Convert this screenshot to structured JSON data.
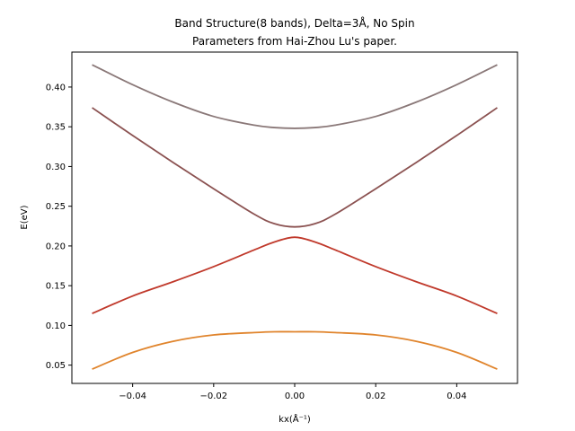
{
  "chart_data": {
    "type": "line",
    "title_line1": "Band Structure(8 bands), Delta=3Å, No Spin",
    "title_line2": "Parameters from Hai-Zhou Lu's paper.",
    "xlabel": "kx(Å⁻¹)",
    "ylabel": "E(eV)",
    "xlim": [
      -0.055,
      0.055
    ],
    "ylim": [
      0.027,
      0.444
    ],
    "xticks": [
      -0.04,
      -0.02,
      0.0,
      0.02,
      0.04
    ],
    "xtick_labels": [
      "−0.04",
      "−0.02",
      "0.00",
      "0.02",
      "0.04"
    ],
    "yticks": [
      0.05,
      0.1,
      0.15,
      0.2,
      0.25,
      0.3,
      0.35,
      0.4
    ],
    "ytick_labels": [
      "0.05",
      "0.10",
      "0.15",
      "0.20",
      "0.25",
      "0.30",
      "0.35",
      "0.40"
    ],
    "grid": false,
    "x": [
      -0.05,
      -0.04,
      -0.03,
      -0.02,
      -0.01,
      -0.005,
      0.0,
      0.005,
      0.01,
      0.02,
      0.03,
      0.04,
      0.05
    ],
    "series": [
      {
        "color": "#e0842c",
        "values": [
          0.045,
          0.066,
          0.08,
          0.088,
          0.091,
          0.092,
          0.092,
          0.092,
          0.091,
          0.088,
          0.08,
          0.066,
          0.045
        ]
      },
      {
        "color": "#c0392b",
        "values": [
          0.115,
          0.137,
          0.155,
          0.174,
          0.195,
          0.205,
          0.211,
          0.205,
          0.195,
          0.174,
          0.155,
          0.137,
          0.115
        ]
      },
      {
        "color": "#8b5251",
        "values": [
          0.374,
          0.339,
          0.305,
          0.272,
          0.24,
          0.228,
          0.224,
          0.228,
          0.24,
          0.272,
          0.305,
          0.339,
          0.374
        ]
      },
      {
        "color": "#8a7878",
        "values": [
          0.428,
          0.403,
          0.381,
          0.363,
          0.352,
          0.349,
          0.348,
          0.349,
          0.352,
          0.363,
          0.381,
          0.403,
          0.428
        ]
      }
    ]
  }
}
